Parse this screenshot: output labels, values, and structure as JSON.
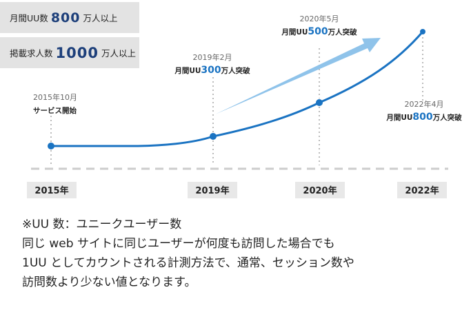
{
  "stats": [
    {
      "prefix": "月間UU数",
      "value": "800",
      "suffix": "万人以上"
    },
    {
      "prefix": "掲載求人数",
      "value": "1000",
      "suffix": "万人以上"
    }
  ],
  "chart_data": {
    "type": "line",
    "x": [
      "2015年10月",
      "2019年2月",
      "2020年5月",
      "2022年4月"
    ],
    "unit": "万人",
    "values": [
      null,
      300,
      500,
      800
    ],
    "tick_labels": [
      "2015年",
      "2019年",
      "2020年",
      "2022年"
    ],
    "annotations": [
      {
        "date": "2015年10月",
        "text": "サービス開始",
        "accent": ""
      },
      {
        "date": "2019年2月",
        "text_pre": "月間UU",
        "accent": "300",
        "text_post": "万人突破"
      },
      {
        "date": "2020年5月",
        "text_pre": "月間UU",
        "accent": "500",
        "text_post": "万人突破"
      },
      {
        "date": "2022年4月",
        "text_pre": "月間UU",
        "accent": "800",
        "text_post": "万人突破"
      }
    ],
    "grid": false,
    "colors": {
      "line": "#1a73c2",
      "accent": "#1a73c2",
      "arrow": "#8fc3ea",
      "dash": "#cccccc"
    }
  },
  "footnote": [
    "※UU 数：ユニークユーザー数",
    "同じ web サイトに同じユーザーが何度も訪問した場合でも",
    "1UU としてカウントされる計測方法で、通常、セッション数や",
    "訪問数より少ない値となります。"
  ]
}
